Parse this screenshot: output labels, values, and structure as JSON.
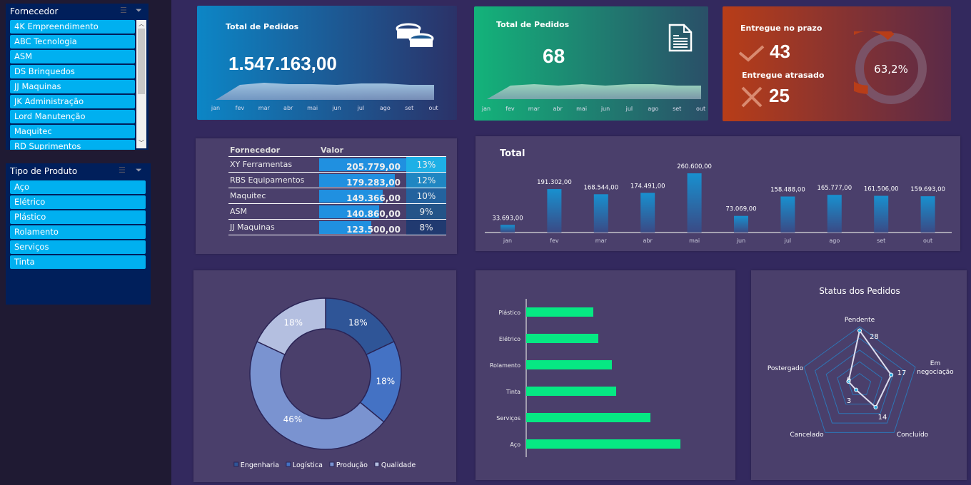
{
  "slicers": {
    "fornecedor": {
      "title": "Fornecedor",
      "items": [
        "4K Empreendimento",
        "ABC Tecnologia",
        "ASM",
        "DS Brinquedos",
        "JJ Maquinas",
        "JK Administração",
        "Lord Manutenção",
        "Maquitec",
        "RD Suprimentos"
      ]
    },
    "tipo": {
      "title": "Tipo de Produto",
      "items": [
        "Aço",
        "Elétrico",
        "Plástico",
        "Rolamento",
        "Serviços",
        "Tinta"
      ]
    }
  },
  "kpi_valor": {
    "title": "Total de Pedidos",
    "value": "1.547.163,00",
    "icon": "coins-icon",
    "months": [
      "jan",
      "fev",
      "mar",
      "abr",
      "mai",
      "jun",
      "jul",
      "ago",
      "set",
      "out"
    ]
  },
  "kpi_pedidos": {
    "title": "Total de Pedidos",
    "value": "68",
    "icon": "document-icon",
    "months": [
      "jan",
      "fev",
      "mar",
      "abr",
      "mai",
      "jun",
      "jul",
      "ago",
      "set",
      "out"
    ]
  },
  "kpi_entrega": {
    "on_time_label": "Entregue no prazo",
    "on_time": "43",
    "late_label": "Entregue atrasado",
    "late": "25",
    "pct_label": "63,2%",
    "pct": 63.2,
    "colors": {
      "on_time": "#b83d18",
      "late": "#7a5266"
    }
  },
  "top_suppliers": {
    "headers": [
      "Fornecedor",
      "Valor"
    ],
    "rows": [
      {
        "name": "XY Ferramentas",
        "value": "205.779,00",
        "raw": 205779,
        "pct": "13%",
        "color": "#1eb0e6"
      },
      {
        "name": "RBS Equipamentos",
        "value": "179.283,00",
        "raw": 179283,
        "pct": "12%",
        "color": "#1f86c2"
      },
      {
        "name": "Maquitec",
        "value": "149.366,00",
        "raw": 149366,
        "pct": "10%",
        "color": "#23629e"
      },
      {
        "name": "ASM",
        "value": "140.860,00",
        "raw": 140860,
        "pct": "9%",
        "color": "#245488"
      },
      {
        "name": "JJ Maquinas",
        "value": "123.500,00",
        "raw": 123500,
        "pct": "8%",
        "color": "#213a70"
      }
    ]
  },
  "chart_data": [
    {
      "type": "bar",
      "title": "Total",
      "categories": [
        "jan",
        "fev",
        "mar",
        "abr",
        "mai",
        "jun",
        "jul",
        "ago",
        "set",
        "out"
      ],
      "values": [
        33693,
        191302,
        168544,
        174491,
        260600,
        73069,
        158488,
        165777,
        161506,
        159693
      ],
      "labels": [
        "33.693,00",
        "191.302,00",
        "168.544,00",
        "174.491,00",
        "260.600,00",
        "73.069,00",
        "158.488,00",
        "165.777,00",
        "161.506,00",
        "159.693,00"
      ]
    },
    {
      "type": "pie",
      "categories": [
        "Engenharia",
        "Logística",
        "Produção",
        "Qualidade"
      ],
      "values": [
        18,
        18,
        46,
        18
      ],
      "labels": [
        "18%",
        "18%",
        "46%",
        "18%"
      ],
      "colors": [
        "#2f5597",
        "#4472c4",
        "#7a93d0",
        "#b4bfe0"
      ],
      "legend": "bottom"
    },
    {
      "type": "bar",
      "orientation": "horizontal",
      "categories": [
        "Plástico",
        "Elétrico",
        "Rolamento",
        "Tinta",
        "Serviços",
        "Aço"
      ],
      "values": [
        94,
        101,
        120,
        126,
        174,
        216
      ],
      "color": "#06e883"
    },
    {
      "type": "radar",
      "title": "Status dos Pedidos",
      "categories": [
        "Pendente",
        "Em negociação",
        "Concluído",
        "Cancelado",
        "Postergado"
      ],
      "values": [
        28,
        17,
        14,
        3,
        6
      ],
      "labels": [
        "28",
        "17",
        "14",
        "3",
        "6"
      ],
      "rmax": 30
    }
  ]
}
